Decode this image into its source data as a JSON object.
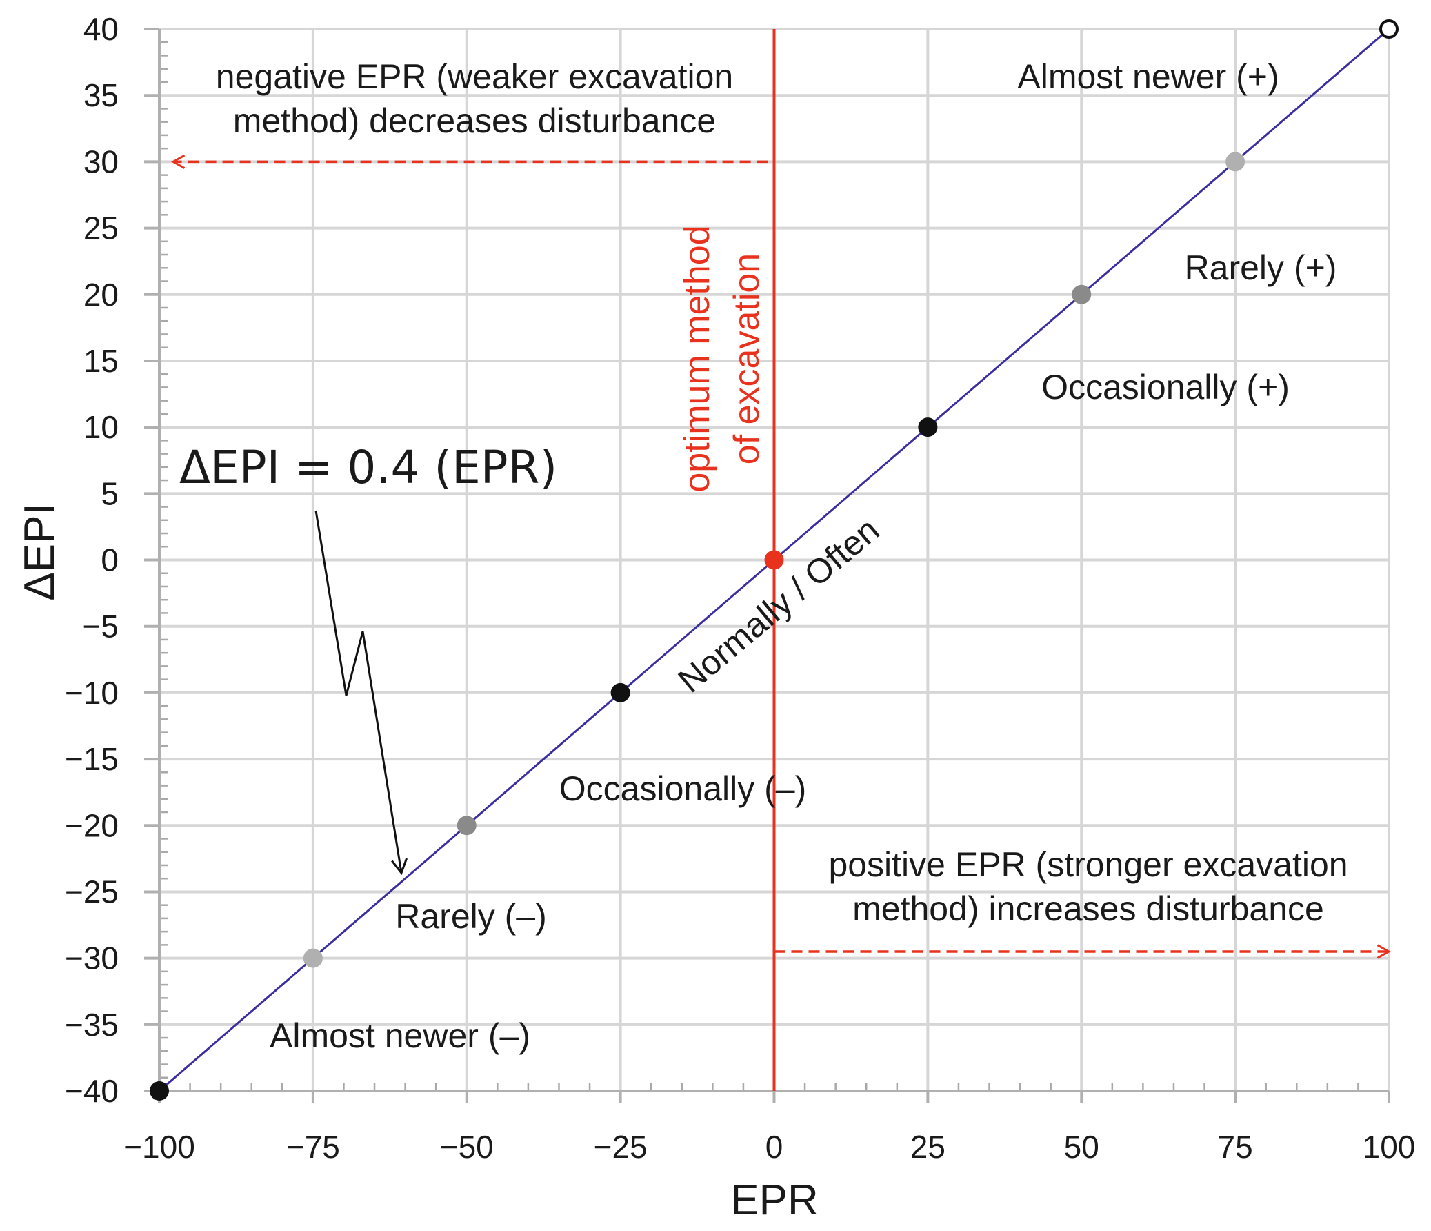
{
  "chart_data": {
    "type": "scatter",
    "xlabel": "EPR",
    "ylabel": "ΔEPI",
    "xlim": [
      -100,
      100
    ],
    "ylim": [
      -40,
      40
    ],
    "grid": true,
    "x_ticks": [
      -100,
      -75,
      -50,
      -25,
      0,
      25,
      50,
      75,
      100
    ],
    "x_tick_labels": [
      "−100",
      "−75",
      "−50",
      "−25",
      "0",
      "25",
      "50",
      "75",
      "100"
    ],
    "y_ticks": [
      40,
      35,
      30,
      25,
      20,
      15,
      10,
      5,
      0,
      -5,
      -10,
      -15,
      -20,
      -25,
      -30,
      -35,
      -40
    ],
    "y_tick_labels": [
      "40",
      "35",
      "30",
      "25",
      "20",
      "15",
      "10",
      "5",
      "0",
      "−5",
      "−10",
      "−15",
      "−20",
      "−25",
      "−30",
      "−35",
      "−40"
    ],
    "line": {
      "name": "ΔEPI = 0.4 (EPR)",
      "slope": 0.4,
      "x_range": [
        -100,
        100
      ],
      "color": "#3a2ea0"
    },
    "points": [
      {
        "x": -100,
        "y": -40,
        "color": "#111111",
        "filled": true
      },
      {
        "x": -75,
        "y": -30,
        "color": "#b0b0b0",
        "filled": true
      },
      {
        "x": -50,
        "y": -20,
        "color": "#8a8a8a",
        "filled": true
      },
      {
        "x": -25,
        "y": -10,
        "color": "#111111",
        "filled": true
      },
      {
        "x": 0,
        "y": 0,
        "color": "#e8321e",
        "filled": true
      },
      {
        "x": 25,
        "y": 10,
        "color": "#111111",
        "filled": true
      },
      {
        "x": 50,
        "y": 20,
        "color": "#8a8a8a",
        "filled": true
      },
      {
        "x": 75,
        "y": 30,
        "color": "#b0b0b0",
        "filled": true
      },
      {
        "x": 100,
        "y": 40,
        "color": "#111111",
        "filled": false
      }
    ],
    "reference_line": {
      "x": 0,
      "color": "#e8321e",
      "label": [
        "optimum method",
        "of excavation"
      ]
    },
    "annotations": {
      "equation": "ΔEPI = 0.4 (EPR)",
      "negative_note": [
        "negative EPR (weaker excavation",
        "method) decreases disturbance"
      ],
      "positive_note": [
        "positive EPR (stronger excavation",
        "method) increases disturbance"
      ],
      "negative_arrow": {
        "from_x": -1,
        "to_x": -100,
        "y": 30
      },
      "positive_arrow": {
        "from_x": 0,
        "to_x": 100,
        "y": -29.5
      },
      "normally_often": "Normally / Often",
      "almost_newer_pos": "Almost newer (+)",
      "rarely_pos": "Rarely (+)",
      "occasionally_pos": "Occasionally (+)",
      "occasionally_neg": "Occasionally (–)",
      "rarely_neg": "Rarely (–)",
      "almost_newer_neg": "Almost newer (–)"
    }
  }
}
